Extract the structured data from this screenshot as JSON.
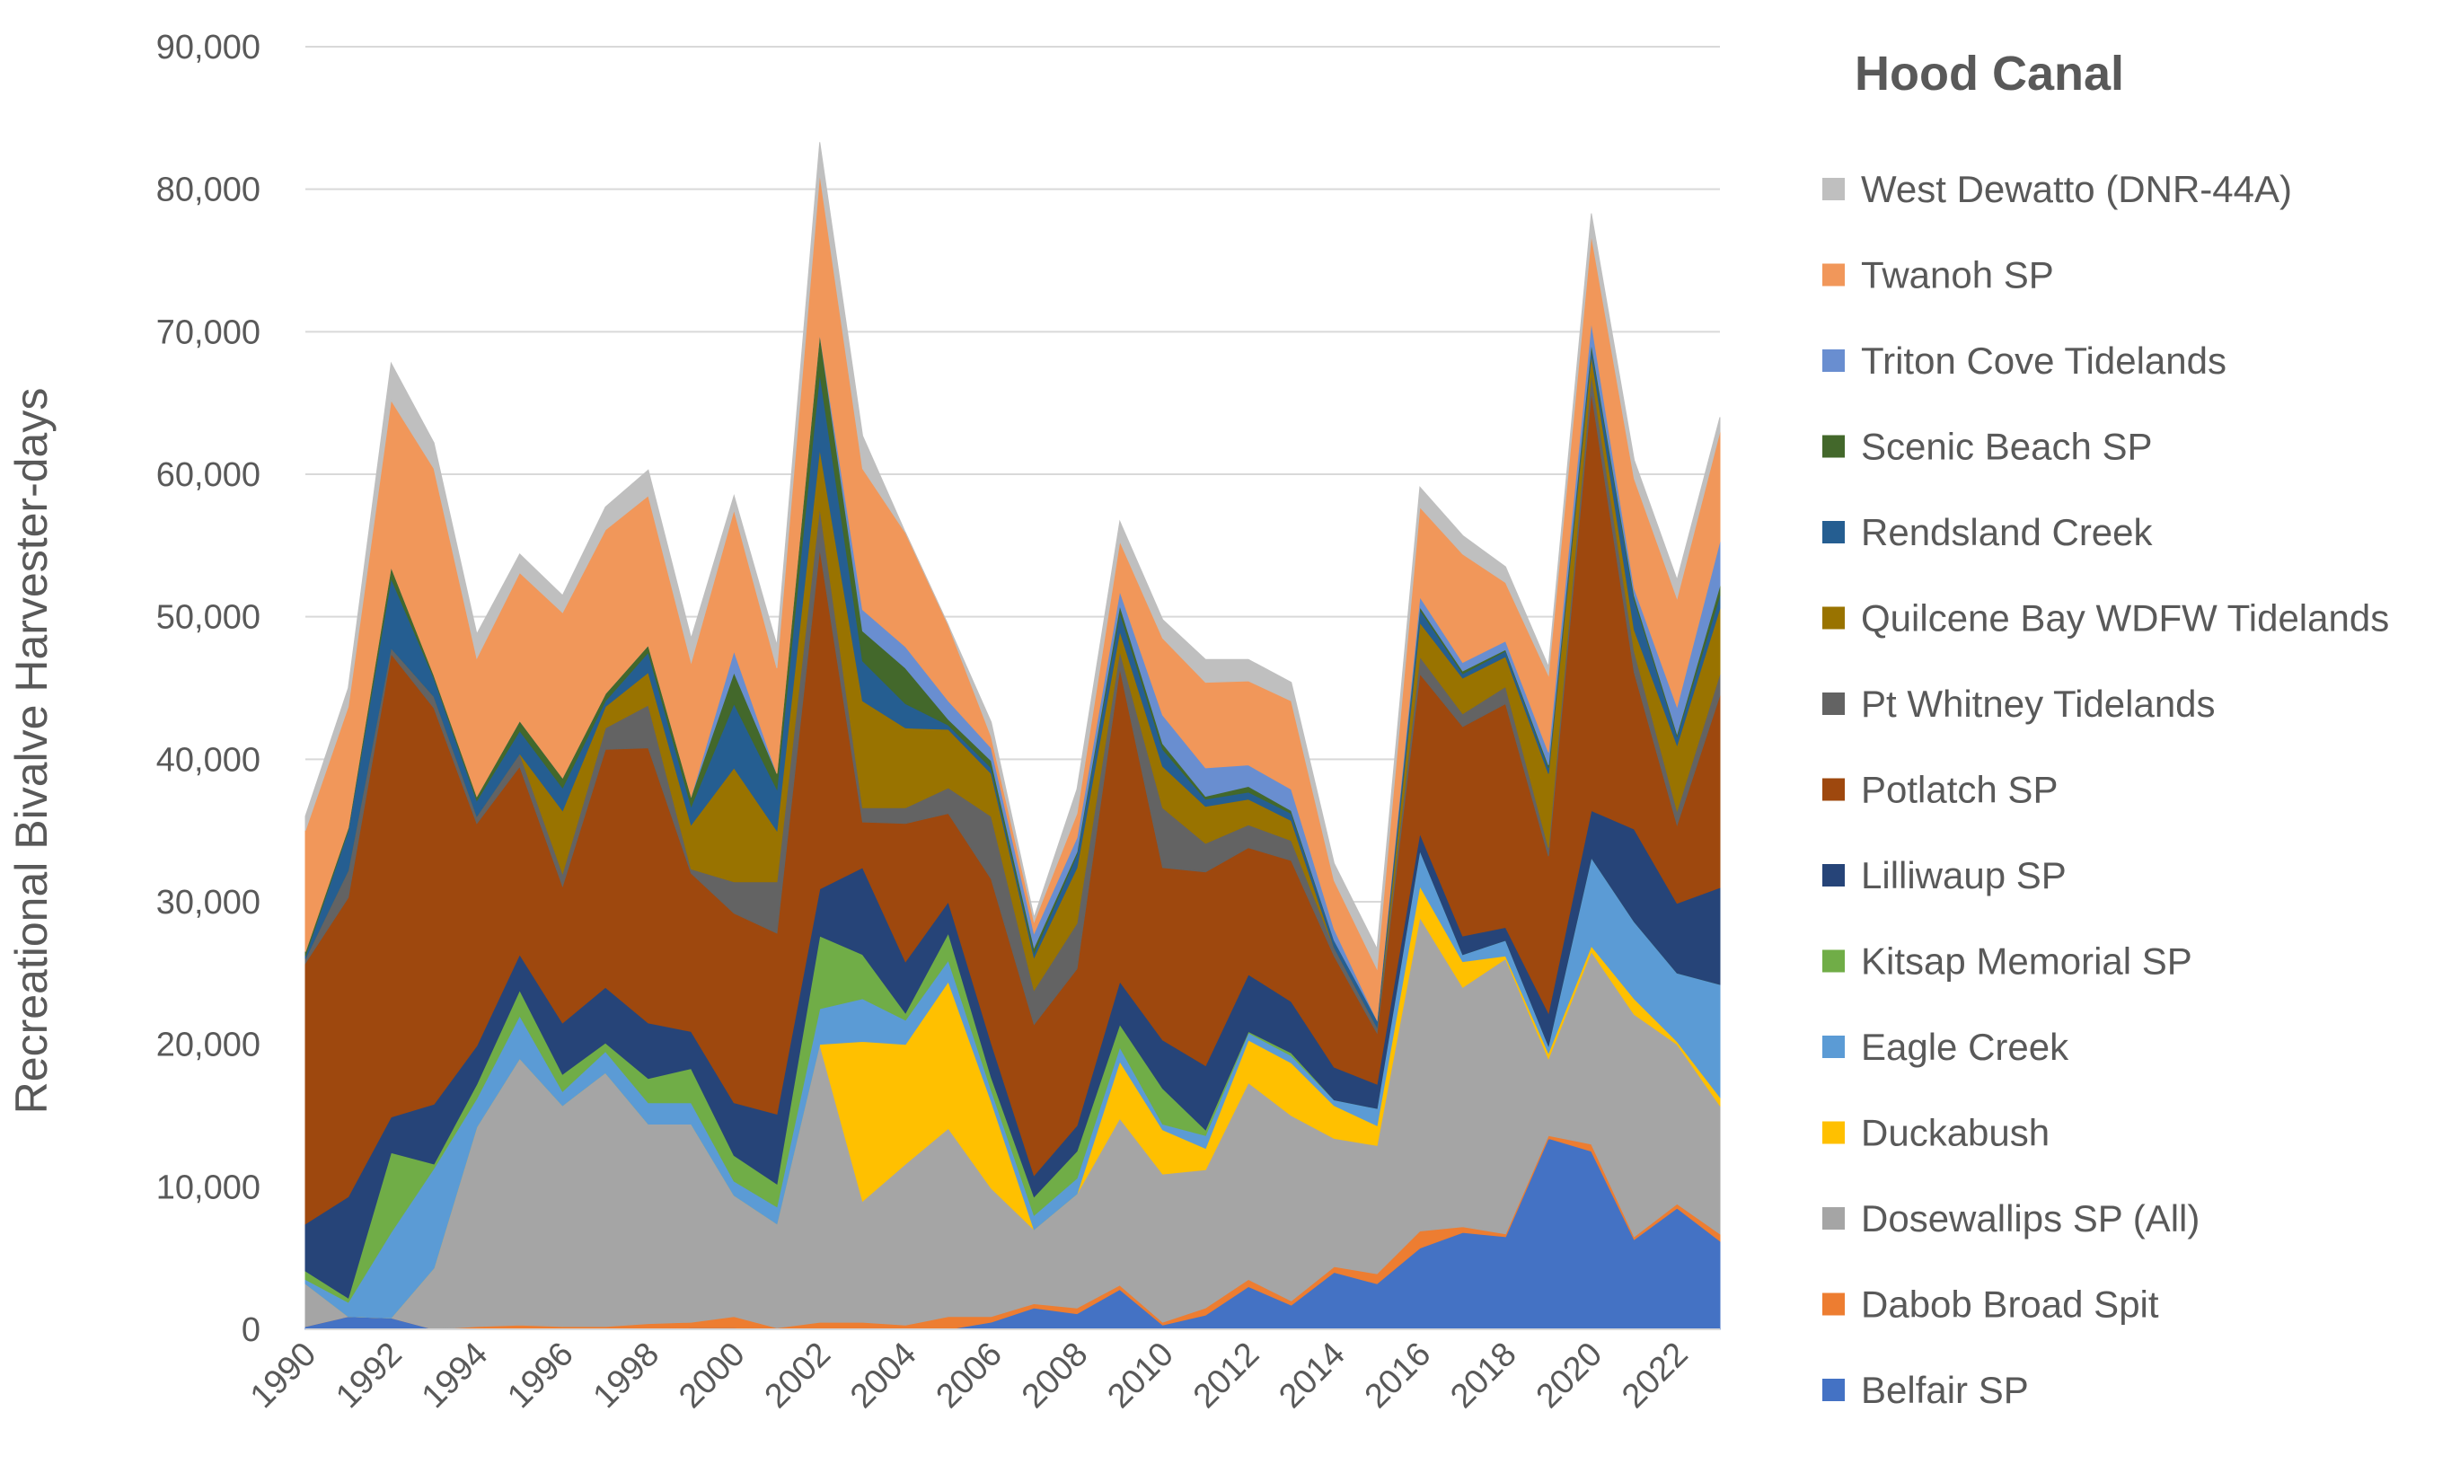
{
  "chart_data": {
    "type": "area",
    "stacked": true,
    "title": "Hood Canal",
    "xlabel": "",
    "ylabel": "Recreational Bivalve Harvester-days",
    "ylim": [
      0,
      90000
    ],
    "y_ticks": [
      "0",
      "10,000",
      "20,000",
      "30,000",
      "40,000",
      "50,000",
      "60,000",
      "70,000",
      "80,000",
      "90,000"
    ],
    "y_tick_values": [
      0,
      10000,
      20000,
      30000,
      40000,
      50000,
      60000,
      70000,
      80000,
      90000
    ],
    "x": [
      1990,
      1991,
      1992,
      1993,
      1994,
      1995,
      1996,
      1997,
      1998,
      1999,
      2000,
      2001,
      2002,
      2003,
      2004,
      2005,
      2006,
      2007,
      2008,
      2009,
      2010,
      2011,
      2012,
      2013,
      2014,
      2015,
      2016,
      2017,
      2018,
      2019,
      2020,
      2021,
      2022,
      2023
    ],
    "x_ticks": [
      "1990",
      "1992",
      "1994",
      "1996",
      "1998",
      "2000",
      "2002",
      "2004",
      "2006",
      "2008",
      "2010",
      "2012",
      "2014",
      "2016",
      "2018",
      "2020",
      "2022"
    ],
    "x_tick_values": [
      1990,
      1992,
      1994,
      1996,
      1998,
      2000,
      2002,
      2004,
      2006,
      2008,
      2010,
      2012,
      2014,
      2016,
      2018,
      2020,
      2022
    ],
    "grid": "horizontal",
    "legend_position": "right",
    "series": [
      {
        "name": "Belfair SP",
        "color": "#4472C4",
        "values": [
          200,
          900,
          800,
          0,
          0,
          0,
          0,
          0,
          0,
          100,
          100,
          0,
          0,
          0,
          0,
          0,
          500,
          1500,
          1100,
          2800,
          300,
          1000,
          3000,
          1700,
          4000,
          3200,
          5700,
          6800,
          6500,
          13400,
          12500,
          6300,
          8500,
          6200
        ]
      },
      {
        "name": "Dabob Broad Spit",
        "color": "#ED7D31",
        "values": [
          0,
          0,
          0,
          0,
          200,
          300,
          200,
          200,
          400,
          400,
          800,
          100,
          500,
          500,
          300,
          900,
          400,
          300,
          400,
          300,
          200,
          500,
          500,
          300,
          400,
          700,
          1200,
          400,
          200,
          200,
          500,
          200,
          300,
          500
        ]
      },
      {
        "name": "Dosewallips SP (All)",
        "color": "#A5A5A5",
        "values": [
          3000,
          0,
          0,
          4300,
          14000,
          18700,
          15500,
          17800,
          14000,
          13900,
          8500,
          7300,
          19500,
          8500,
          11300,
          13200,
          9000,
          5200,
          8000,
          11700,
          10400,
          9700,
          13800,
          13000,
          9000,
          9000,
          22000,
          16800,
          19300,
          5400,
          13500,
          15600,
          11200,
          9000
        ]
      },
      {
        "name": "Duckabush",
        "color": "#FFC000",
        "values": [
          0,
          0,
          0,
          0,
          0,
          0,
          0,
          0,
          0,
          0,
          0,
          0,
          0,
          11200,
          8400,
          10300,
          6100,
          0,
          0,
          4000,
          3100,
          1500,
          3000,
          3700,
          2300,
          1400,
          2200,
          1800,
          200,
          400,
          400,
          1100,
          200,
          600
        ]
      },
      {
        "name": "Eagle Creek",
        "color": "#5B9BD5",
        "values": [
          300,
          1000,
          6000,
          7000,
          2000,
          3000,
          1000,
          1500,
          1500,
          1500,
          1000,
          1200,
          2500,
          3000,
          1700,
          1500,
          800,
          1000,
          1100,
          1000,
          400,
          900,
          500,
          500,
          400,
          1200,
          2500,
          500,
          1100,
          500,
          6200,
          5400,
          4800,
          7900
        ]
      },
      {
        "name": "Kitsap Memorial SP",
        "color": "#70AD47",
        "values": [
          600,
          300,
          5600,
          300,
          1000,
          1800,
          1200,
          600,
          1700,
          2400,
          1800,
          1600,
          5100,
          3100,
          500,
          1900,
          900,
          1300,
          1900,
          1600,
          2500,
          400,
          100,
          200,
          0,
          0,
          0,
          0,
          0,
          0,
          0,
          0,
          0,
          0
        ]
      },
      {
        "name": "Lilliwaup SP",
        "color": "#264478",
        "values": [
          3300,
          7100,
          2500,
          4200,
          2700,
          2500,
          3600,
          3900,
          3900,
          2600,
          3700,
          4900,
          3300,
          6100,
          3600,
          2200,
          2400,
          1500,
          1800,
          3000,
          3400,
          4500,
          4000,
          3600,
          2300,
          1700,
          1200,
          1300,
          900,
          2300,
          3300,
          6500,
          4900,
          6800
        ]
      },
      {
        "name": "Potlatch SP",
        "color": "#9E480E",
        "values": [
          18300,
          21000,
          32500,
          27800,
          15600,
          13200,
          9600,
          16700,
          19300,
          11100,
          13300,
          12700,
          23900,
          3200,
          9700,
          6200,
          11500,
          10600,
          11000,
          22000,
          12100,
          13600,
          8900,
          9900,
          7800,
          3600,
          11200,
          14700,
          15700,
          11000,
          29400,
          11000,
          5500,
          13500
        ]
      },
      {
        "name": "Pt Whitney Tidelands",
        "color": "#636363",
        "values": [
          300,
          1900,
          400,
          800,
          500,
          900,
          900,
          1500,
          3000,
          300,
          2200,
          3600,
          2900,
          1000,
          1100,
          1800,
          4400,
          2400,
          3200,
          1200,
          4200,
          2000,
          1600,
          1400,
          600,
          400,
          1200,
          900,
          1200,
          600,
          1300,
          1500,
          1000,
          1500
        ]
      },
      {
        "name": "Quilcene Bay WDFW Tidelands",
        "color": "#997300",
        "values": [
          0,
          0,
          0,
          0,
          0,
          0,
          4400,
          1500,
          2300,
          3100,
          8000,
          3600,
          4100,
          7500,
          5600,
          4100,
          3000,
          2300,
          3900,
          1400,
          2900,
          2600,
          1800,
          1400,
          0,
          0,
          2400,
          2500,
          2100,
          5200,
          1300,
          1500,
          4600,
          4600
        ]
      },
      {
        "name": "Rendsland Creek",
        "color": "#255E91",
        "values": [
          200,
          2800,
          4900,
          1300,
          1100,
          1600,
          1600,
          400,
          1400,
          1300,
          4500,
          2900,
          5300,
          2800,
          1700,
          300,
          400,
          300,
          900,
          1300,
          1200,
          500,
          500,
          500,
          500,
          500,
          900,
          300,
          400,
          400,
          500,
          2100,
          600,
          900
        ]
      },
      {
        "name": "Scenic Beach SP",
        "color": "#43682B",
        "values": [
          300,
          200,
          800,
          200,
          300,
          700,
          700,
          500,
          500,
          700,
          2200,
          1100,
          2800,
          2100,
          2500,
          400,
          500,
          400,
          200,
          500,
          400,
          200,
          400,
          200,
          0,
          0,
          200,
          200,
          100,
          200,
          300,
          300,
          200,
          700
        ]
      },
      {
        "name": "Triton Cove Tidelands",
        "color": "#698ED0",
        "values": [
          0,
          0,
          0,
          0,
          0,
          0,
          0,
          0,
          0,
          0,
          1500,
          0,
          0,
          1500,
          1500,
          1300,
          900,
          1000,
          1000,
          1000,
          2000,
          2000,
          1500,
          1500,
          800,
          0,
          700,
          600,
          600,
          900,
          1500,
          500,
          1900,
          3100
        ]
      },
      {
        "name": "Twanoh SP",
        "color": "#F1975A",
        "values": [
          8500,
          8500,
          11700,
          14500,
          9700,
          10400,
          11600,
          11500,
          10500,
          9400,
          9900,
          7400,
          11200,
          9900,
          8000,
          5300,
          800,
          800,
          1700,
          3500,
          5400,
          6000,
          5900,
          6200,
          3400,
          3600,
          6300,
          7600,
          4100,
          5400,
          6100,
          7700,
          7600,
          7700
        ]
      },
      {
        "name": "West Dewatto (DNR-44A)",
        "color": "#BFBFBF",
        "values": [
          1000,
          1300,
          2600,
          1800,
          1700,
          1300,
          1200,
          1600,
          1800,
          1700,
          1000,
          1600,
          2200,
          2300,
          0,
          0,
          1000,
          300,
          1700,
          1400,
          1300,
          1600,
          1500,
          1300,
          1200,
          1400,
          1400,
          1300,
          1100,
          600,
          1500,
          1300,
          1300,
          1000
        ]
      }
    ]
  }
}
